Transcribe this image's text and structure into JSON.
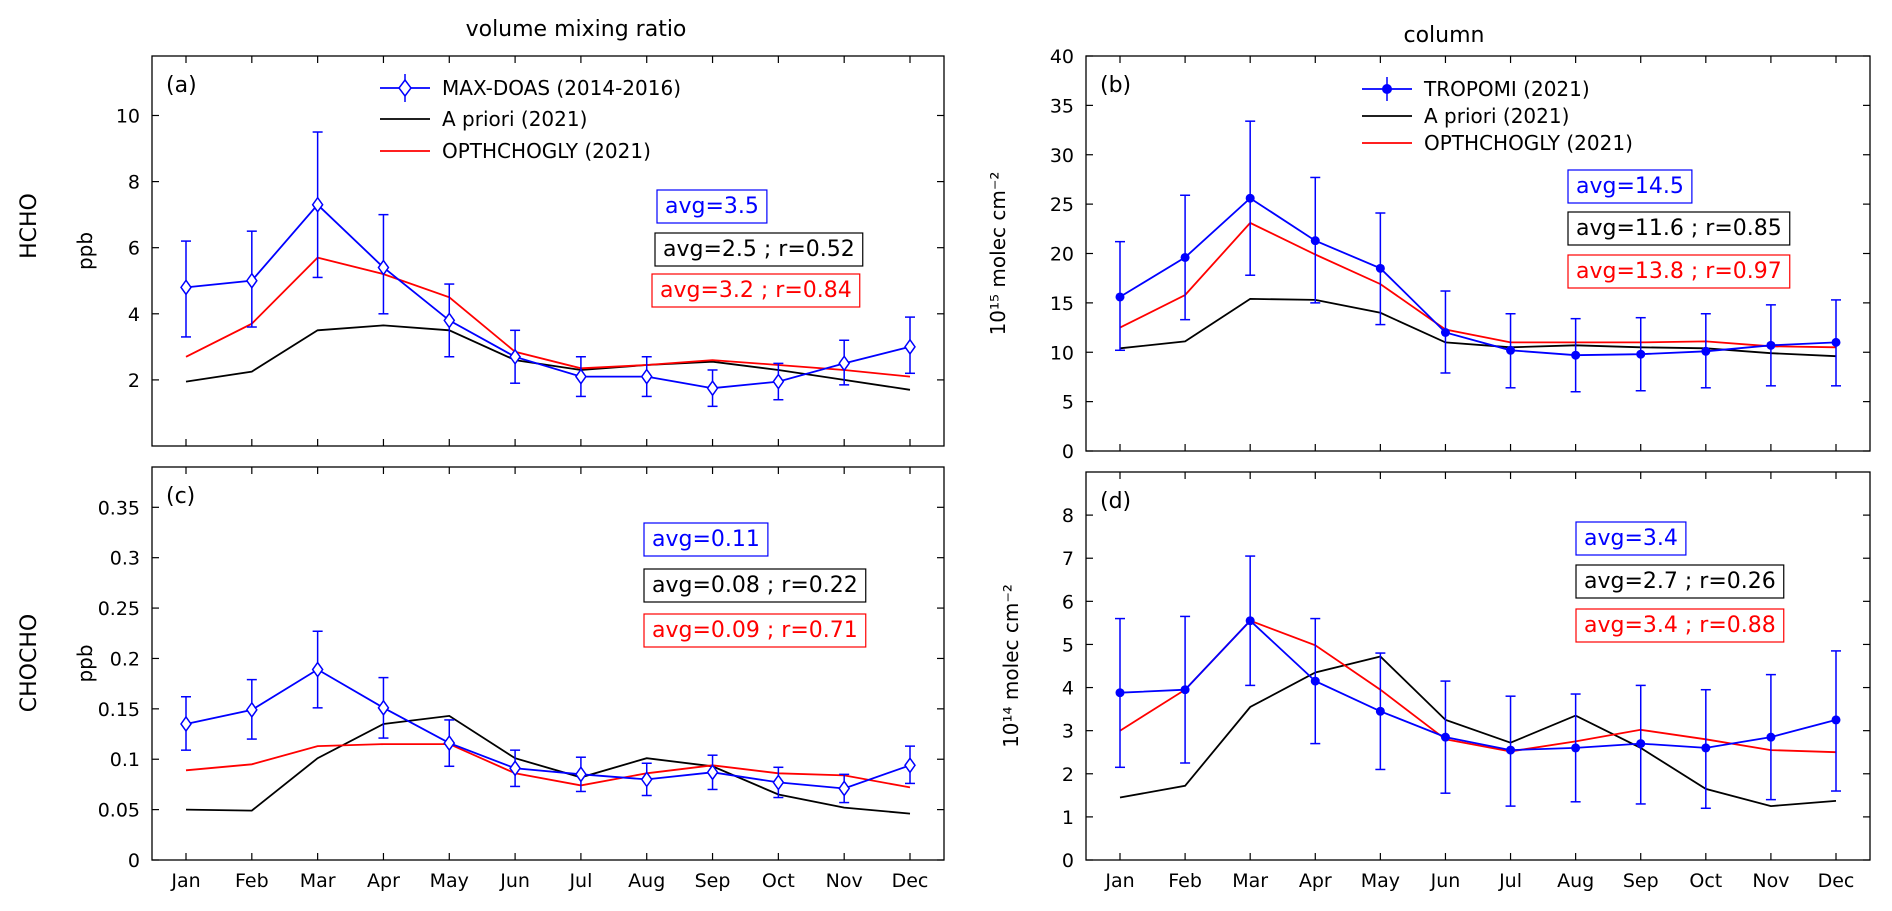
{
  "colors": {
    "maxdoas": "#0000ff",
    "apriori": "#000000",
    "opthchogly": "#ff0000"
  },
  "figure": {
    "left_title": "volume mixing ratio",
    "right_title": "column",
    "row_label_top": "HCHO",
    "row_label_bottom": "CHOCHO"
  },
  "chart_data": [
    {
      "id": "a",
      "type": "line",
      "panel_label": "(a)",
      "ylabel": "ppb",
      "ylim": [
        0,
        11.8
      ],
      "yticks": [
        2,
        4,
        6,
        8,
        10
      ],
      "ytick_labels": [
        "2",
        "4",
        "6",
        "8",
        "10"
      ],
      "categories": [
        "Jan",
        "Feb",
        "Mar",
        "Apr",
        "May",
        "Jun",
        "Jul",
        "Aug",
        "Sep",
        "Oct",
        "Nov",
        "Dec"
      ],
      "show_xlabels": false,
      "legend_position": "top-center",
      "series": [
        {
          "name": "MAX-DOAS (2014-2016)",
          "color_key": "maxdoas",
          "marker": "diamond",
          "values": [
            4.8,
            5.0,
            7.3,
            5.4,
            3.8,
            2.7,
            2.1,
            2.1,
            1.75,
            1.95,
            2.5,
            3.0
          ],
          "err_low": [
            3.3,
            3.6,
            5.1,
            4.0,
            2.7,
            1.9,
            1.5,
            1.5,
            1.2,
            1.4,
            1.85,
            2.2
          ],
          "err_high": [
            6.2,
            6.5,
            9.5,
            7.0,
            4.9,
            3.5,
            2.7,
            2.7,
            2.3,
            2.5,
            3.2,
            3.9
          ]
        },
        {
          "name": "A priori (2021)",
          "color_key": "apriori",
          "values": [
            1.95,
            2.25,
            3.5,
            3.65,
            3.5,
            2.6,
            2.3,
            2.45,
            2.55,
            2.3,
            2.0,
            1.7
          ]
        },
        {
          "name": "OPTHCHOGLY (2021)",
          "color_key": "opthchogly",
          "values": [
            2.7,
            3.7,
            5.7,
            5.2,
            4.5,
            2.85,
            2.35,
            2.45,
            2.6,
            2.45,
            2.3,
            2.1
          ]
        }
      ],
      "stats": [
        {
          "text": "avg=3.5",
          "color_key": "maxdoas"
        },
        {
          "text": "avg=2.5 ; r=0.52",
          "color_key": "apriori"
        },
        {
          "text": "avg=3.2 ; r=0.84",
          "color_key": "opthchogly"
        }
      ]
    },
    {
      "id": "b",
      "type": "line",
      "panel_label": "(b)",
      "ylabel": "10¹⁵ molec cm⁻²",
      "ylim": [
        0,
        40
      ],
      "yticks": [
        0,
        5,
        10,
        15,
        20,
        25,
        30,
        35,
        40
      ],
      "ytick_labels": [
        "0",
        "5",
        "10",
        "15",
        "20",
        "25",
        "30",
        "35",
        "40"
      ],
      "categories": [
        "Jan",
        "Feb",
        "Mar",
        "Apr",
        "May",
        "Jun",
        "Jul",
        "Aug",
        "Sep",
        "Oct",
        "Nov",
        "Dec"
      ],
      "show_xlabels": false,
      "legend_position": "top-center",
      "series": [
        {
          "name": "TROPOMI (2021)",
          "color_key": "maxdoas",
          "marker": "dot",
          "values": [
            15.6,
            19.6,
            25.6,
            21.3,
            18.5,
            12.0,
            10.2,
            9.7,
            9.8,
            10.1,
            10.7,
            11.0
          ],
          "err_low": [
            10.2,
            13.3,
            17.8,
            15.0,
            12.8,
            7.9,
            6.4,
            6.0,
            6.1,
            6.4,
            6.6,
            6.6
          ],
          "err_high": [
            21.2,
            25.9,
            33.4,
            27.7,
            24.1,
            16.2,
            13.9,
            13.4,
            13.5,
            13.9,
            14.8,
            15.3
          ]
        },
        {
          "name": "A priori (2021)",
          "color_key": "apriori",
          "values": [
            10.4,
            11.1,
            15.4,
            15.3,
            14.0,
            11.0,
            10.5,
            10.7,
            10.5,
            10.4,
            9.9,
            9.6
          ]
        },
        {
          "name": "OPTHCHOGLY (2021)",
          "color_key": "opthchogly",
          "values": [
            12.5,
            15.8,
            23.1,
            19.9,
            16.9,
            12.3,
            11.0,
            11.0,
            11.0,
            11.1,
            10.6,
            10.5
          ]
        }
      ],
      "stats": [
        {
          "text": "avg=14.5",
          "color_key": "maxdoas"
        },
        {
          "text": "avg=11.6 ; r=0.85",
          "color_key": "apriori"
        },
        {
          "text": "avg=13.8 ; r=0.97",
          "color_key": "opthchogly"
        }
      ]
    },
    {
      "id": "c",
      "type": "line",
      "panel_label": "(c)",
      "ylabel": "ppb",
      "ylim": [
        0,
        0.39
      ],
      "yticks": [
        0,
        0.05,
        0.1,
        0.15,
        0.2,
        0.25,
        0.3,
        0.35
      ],
      "ytick_labels": [
        "0",
        "0.05",
        "0.1",
        "0.15",
        "0.2",
        "0.25",
        "0.3",
        "0.35"
      ],
      "categories": [
        "Jan",
        "Feb",
        "Mar",
        "Apr",
        "May",
        "Jun",
        "Jul",
        "Aug",
        "Sep",
        "Oct",
        "Nov",
        "Dec"
      ],
      "show_xlabels": true,
      "series": [
        {
          "name": "MAX-DOAS (2014-2016)",
          "color_key": "maxdoas",
          "marker": "diamond",
          "values": [
            0.135,
            0.149,
            0.189,
            0.151,
            0.116,
            0.091,
            0.085,
            0.08,
            0.087,
            0.077,
            0.071,
            0.094
          ],
          "err_low": [
            0.109,
            0.12,
            0.151,
            0.121,
            0.093,
            0.073,
            0.068,
            0.064,
            0.07,
            0.062,
            0.057,
            0.076
          ],
          "err_high": [
            0.162,
            0.179,
            0.227,
            0.181,
            0.139,
            0.109,
            0.102,
            0.096,
            0.104,
            0.092,
            0.085,
            0.113
          ]
        },
        {
          "name": "A priori (2021)",
          "color_key": "apriori",
          "values": [
            0.05,
            0.049,
            0.101,
            0.135,
            0.143,
            0.101,
            0.082,
            0.101,
            0.093,
            0.065,
            0.052,
            0.046
          ]
        },
        {
          "name": "OPTHCHOGLY (2021)",
          "color_key": "opthchogly",
          "values": [
            0.089,
            0.095,
            0.113,
            0.115,
            0.115,
            0.086,
            0.074,
            0.086,
            0.094,
            0.086,
            0.084,
            0.072
          ]
        }
      ],
      "stats": [
        {
          "text": "avg=0.11",
          "color_key": "maxdoas"
        },
        {
          "text": "avg=0.08 ; r=0.22",
          "color_key": "apriori"
        },
        {
          "text": "avg=0.09 ; r=0.71",
          "color_key": "opthchogly"
        }
      ]
    },
    {
      "id": "d",
      "type": "line",
      "panel_label": "(d)",
      "ylabel": "10¹⁴ molec cm⁻²",
      "ylim": [
        0,
        9
      ],
      "yticks": [
        0,
        1,
        2,
        3,
        4,
        5,
        6,
        7,
        8
      ],
      "ytick_labels": [
        "0",
        "1",
        "2",
        "3",
        "4",
        "5",
        "6",
        "7",
        "8"
      ],
      "categories": [
        "Jan",
        "Feb",
        "Mar",
        "Apr",
        "May",
        "Jun",
        "Jul",
        "Aug",
        "Sep",
        "Oct",
        "Nov",
        "Dec"
      ],
      "show_xlabels": true,
      "series": [
        {
          "name": "TROPOMI (2021)",
          "color_key": "maxdoas",
          "marker": "dot",
          "values": [
            3.88,
            3.95,
            5.55,
            4.15,
            3.45,
            2.85,
            2.55,
            2.6,
            2.7,
            2.6,
            2.85,
            3.25
          ],
          "err_low": [
            2.15,
            2.25,
            4.05,
            2.7,
            2.1,
            1.55,
            1.25,
            1.35,
            1.3,
            1.2,
            1.4,
            1.6
          ],
          "err_high": [
            5.6,
            5.65,
            7.05,
            5.6,
            4.8,
            4.15,
            3.8,
            3.85,
            4.05,
            3.95,
            4.3,
            4.85
          ]
        },
        {
          "name": "A priori (2021)",
          "color_key": "apriori",
          "values": [
            1.45,
            1.72,
            3.55,
            4.35,
            4.72,
            3.25,
            2.72,
            3.35,
            2.6,
            1.65,
            1.25,
            1.37
          ]
        },
        {
          "name": "OPTHCHOGLY (2021)",
          "color_key": "opthchogly",
          "values": [
            3.0,
            3.95,
            5.55,
            4.98,
            3.95,
            2.8,
            2.52,
            2.75,
            3.02,
            2.8,
            2.55,
            2.5
          ]
        }
      ],
      "stats": [
        {
          "text": "avg=3.4",
          "color_key": "maxdoas"
        },
        {
          "text": "avg=2.7 ; r=0.26",
          "color_key": "apriori"
        },
        {
          "text": "avg=3.4 ; r=0.88",
          "color_key": "opthchogly"
        }
      ]
    }
  ]
}
